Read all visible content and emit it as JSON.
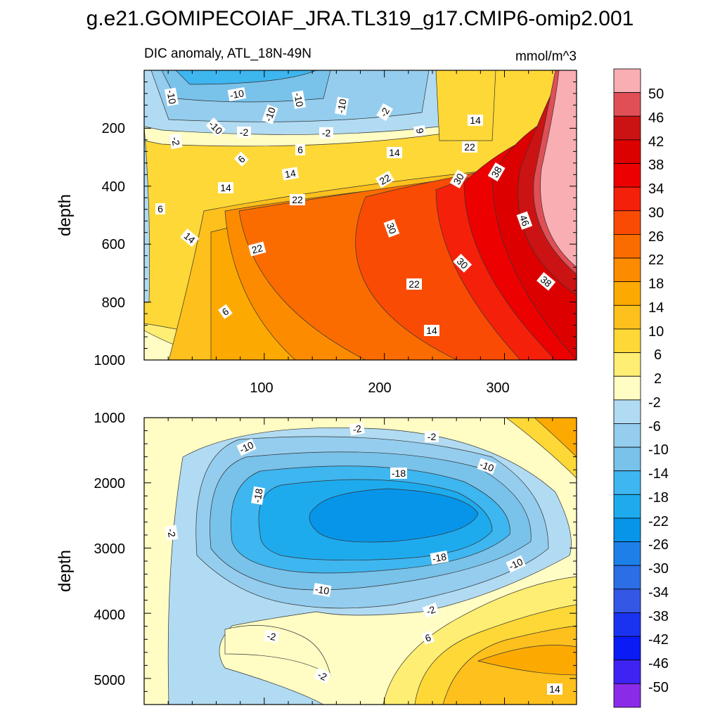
{
  "chart_data": {
    "type": "heatmap",
    "title": "g.e21.GOMIPECOIAF_JRA.TL319_g17.CMIP6-omip2.001",
    "subtitle": "DIC anomaly, ATL_18N-49N",
    "units": "mmol/m^3",
    "colorbar": {
      "levels": [
        50,
        46,
        42,
        38,
        34,
        30,
        26,
        22,
        18,
        14,
        10,
        6,
        2,
        -2,
        -6,
        -10,
        -14,
        -18,
        -22,
        -26,
        -30,
        -34,
        -38,
        -42,
        -46,
        -50
      ],
      "colors": [
        "#f9aeb3",
        "#e04f55",
        "#cc1313",
        "#dd0000",
        "#ec0000",
        "#f5200a",
        "#fa4b05",
        "#fb6c00",
        "#fc8b00",
        "#fcaa02",
        "#fdc01c",
        "#fed836",
        "#feee74",
        "#fffcc4",
        "#b1dbf2",
        "#95cdee",
        "#79c2ea",
        "#3eb6f0",
        "#1eabee",
        "#0795e9",
        "#1d80e8",
        "#2b6ee6",
        "#3457e6",
        "#1a33f0",
        "#0a1bf6",
        "#3f23f2",
        "#8a2be8"
      ]
    },
    "panels": [
      {
        "name": "upper",
        "ylabel": "depth",
        "yticks": [
          200,
          400,
          600,
          800,
          1000
        ],
        "ylim": [
          0,
          1000
        ],
        "xticks": [
          100,
          200,
          300
        ],
        "xlim": [
          0,
          370
        ],
        "contour_labels": [
          "-10",
          "-10",
          "-10",
          "-10",
          "-10",
          "-10",
          "-2",
          "-2",
          "-2",
          "-2",
          "6",
          "6",
          "6",
          "6",
          "6",
          "14",
          "14",
          "14",
          "14",
          "14",
          "14",
          "22",
          "22",
          "22",
          "22",
          "22",
          "30",
          "30",
          "30",
          "38",
          "38",
          "46"
        ]
      },
      {
        "name": "lower",
        "ylabel": "depth",
        "yticks": [
          1000,
          2000,
          3000,
          4000,
          5000
        ],
        "ylim": [
          1000,
          5400
        ],
        "xlim": [
          0,
          370
        ],
        "contour_labels": [
          "-2",
          "-2",
          "-10",
          "-18",
          "-10",
          "-18",
          "-2",
          "-18",
          "-10",
          "-10",
          "-2",
          "-2",
          "6",
          "-2",
          "14"
        ]
      }
    ]
  }
}
